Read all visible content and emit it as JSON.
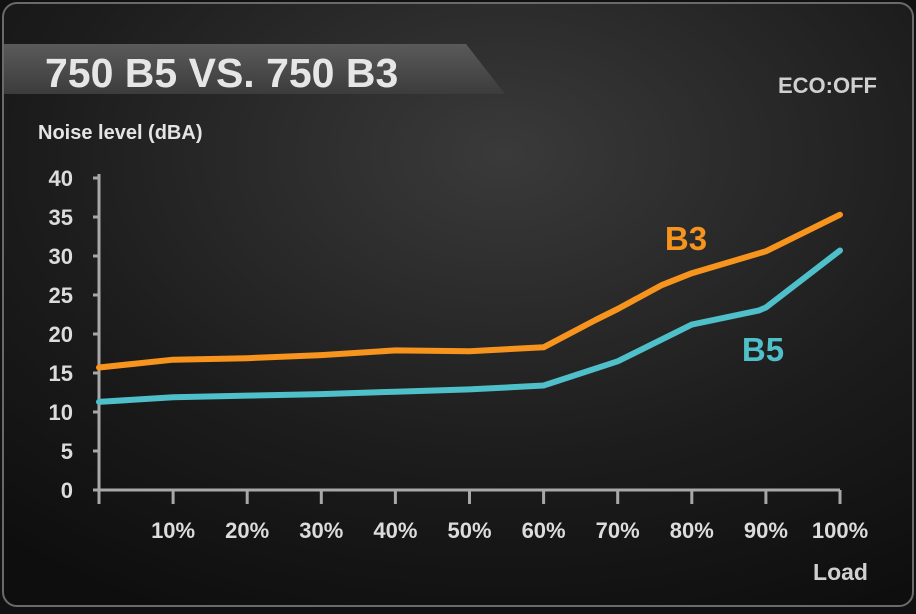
{
  "chart_data": {
    "type": "line",
    "title": "750 B5 VS. 750 B3",
    "badge": "ECO:OFF",
    "ylabel": "Noise level (dBA)",
    "xlabel": "Load",
    "ylim": [
      0,
      40
    ],
    "yticks": [
      0,
      5,
      10,
      15,
      20,
      25,
      30,
      35,
      40
    ],
    "xlim": [
      0,
      100
    ],
    "xticks": [
      10,
      20,
      30,
      40,
      50,
      60,
      70,
      80,
      90,
      100
    ],
    "xtick_labels": [
      "10%",
      "20%",
      "30%",
      "40%",
      "50%",
      "60%",
      "70%",
      "80%",
      "90%",
      "100%"
    ],
    "grid": true,
    "series": [
      {
        "name": "B3",
        "color": "#f7941d",
        "x": [
          0,
          10,
          20,
          30,
          40,
          50,
          60,
          67,
          70,
          76,
          80,
          90,
          100
        ],
        "y": [
          15.7,
          16.7,
          16.9,
          17.3,
          17.9,
          17.8,
          18.3,
          21.8,
          23.2,
          26.3,
          27.8,
          30.6,
          35.3
        ]
      },
      {
        "name": "B5",
        "color": "#4fbfc9",
        "x": [
          0,
          10,
          20,
          30,
          40,
          50,
          60,
          70,
          80,
          89,
          90,
          100
        ],
        "y": [
          11.3,
          11.9,
          12.1,
          12.3,
          12.6,
          12.9,
          13.4,
          16.5,
          21.2,
          23.0,
          23.4,
          30.7
        ]
      }
    ]
  }
}
